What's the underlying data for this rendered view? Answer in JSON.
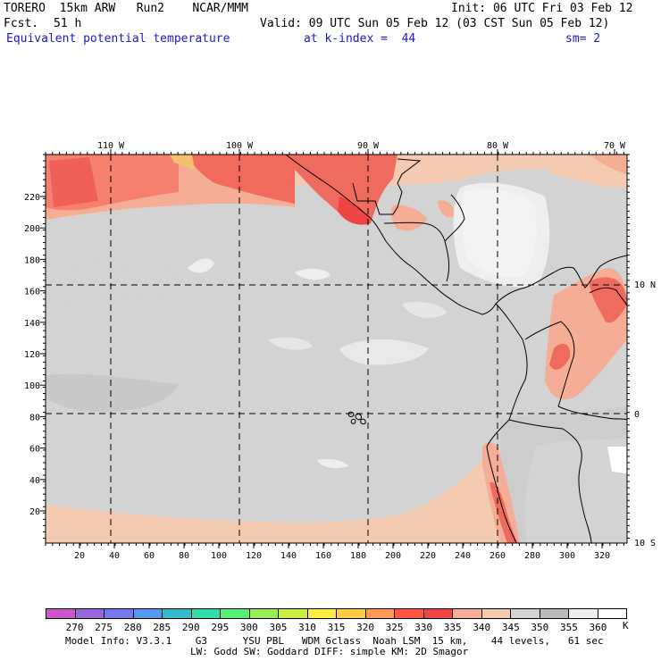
{
  "header": {
    "model": "TORERO  15km ARW   Run2    NCAR/MMM",
    "init": "Init: 06 UTC Fri 03 Feb 12",
    "fcst_label": "Fcst.",
    "fcst_value": "51 h",
    "valid": "Valid: 09 UTC Sun 05 Feb 12 (03 CST Sun 05 Feb 12)",
    "field": "Equivalent potential temperature",
    "level": "at k-index =  44",
    "smoothing": "sm= 2"
  },
  "map": {
    "x_ticks": [
      "20",
      "40",
      "60",
      "80",
      "100",
      "120",
      "140",
      "160",
      "180",
      "200",
      "220",
      "240",
      "260",
      "280",
      "300",
      "320"
    ],
    "y_ticks": [
      "20",
      "40",
      "60",
      "80",
      "100",
      "120",
      "140",
      "160",
      "180",
      "200",
      "220"
    ],
    "lon_labels": [
      "110 W",
      "100 W",
      "90 W",
      "80 W",
      "70 W"
    ],
    "lat_labels": [
      "10 N",
      "0",
      "10 S"
    ]
  },
  "colorbar": {
    "levels": [
      "270",
      "275",
      "280",
      "285",
      "290",
      "295",
      "300",
      "305",
      "310",
      "315",
      "320",
      "325",
      "330",
      "335",
      "340",
      "345",
      "350",
      "355",
      "360"
    ],
    "unit": "K",
    "colors": [
      "#cc55cc",
      "#9966dd",
      "#7777ee",
      "#5599ee",
      "#33bbcc",
      "#33ddaa",
      "#55ee77",
      "#99ee55",
      "#ccee44",
      "#ffee44",
      "#ffcc44",
      "#ff9955",
      "#ff5544",
      "#ee4444",
      "#f6ad95",
      "#f4cbb0",
      "#d3d3d3",
      "#bbbbbb",
      "#eeeeee",
      "#ffffff"
    ]
  },
  "footer": {
    "line1": "Model Info: V3.3.1    G3      YSU PBL   WDM 6class  Noah LSM  15 km,    44 levels,   61 sec",
    "line2": "LW: Godd SW: Goddard DIFF: simple KM: 2D Smagor"
  }
}
